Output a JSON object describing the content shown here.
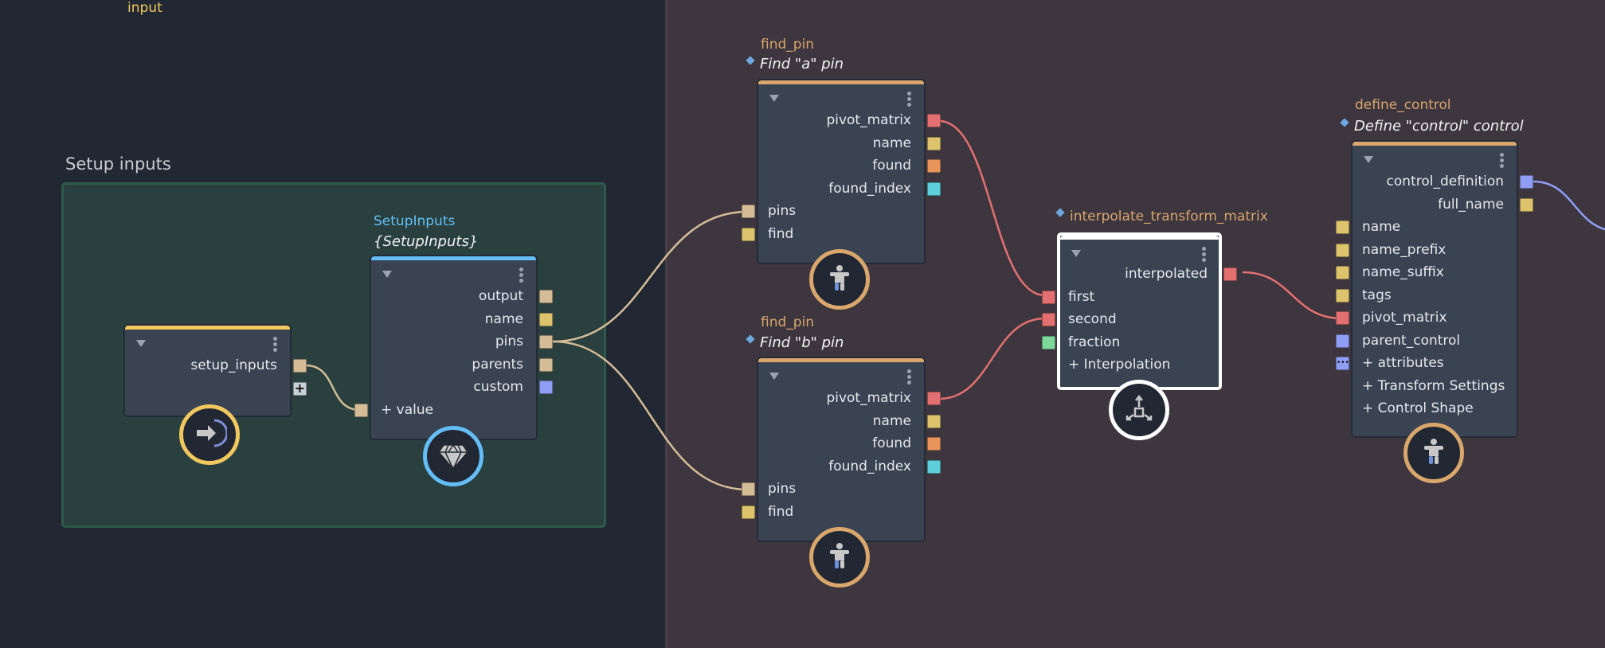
{
  "group": {
    "title": "Setup inputs"
  },
  "port_colors": {
    "struct": "#d4bc97",
    "string": "#dcc36c",
    "matrix": "#e37070",
    "bool": "#e8955c",
    "int": "#5ccfd8",
    "control": "#8f9df5",
    "float": "#7fd99b",
    "add": "#c8d0d8"
  },
  "nodes": {
    "input": {
      "type_label": "input",
      "type_color": "#f0c85e",
      "stripe": "#f0c85e",
      "badge_color": "#f0c85e",
      "badge_icon": "arrow-in-icon",
      "outputs": [
        {
          "label": "setup_inputs",
          "color": "#d4bc97"
        }
      ],
      "add_port": "+",
      "inputs": [],
      "expanders": []
    },
    "setup_inputs": {
      "type_label": "SetupInputs",
      "type_color": "#64bdf6",
      "title": "{SetupInputs}",
      "stripe": "#64bdf6",
      "badge_color": "#64bdf6",
      "badge_icon": "diamond-icon",
      "outputs": [
        {
          "label": "output",
          "color": "#d4bc97"
        },
        {
          "label": "name",
          "color": "#dcc36c"
        },
        {
          "label": "pins",
          "color": "#d4bc97"
        },
        {
          "label": "parents",
          "color": "#d4bc97"
        },
        {
          "label": "custom",
          "color": "#8f9df5"
        }
      ],
      "inputs": [
        {
          "label": "+ value",
          "color": "#d4bc97"
        }
      ],
      "expanders": []
    },
    "find_pin_a": {
      "type_label": "find_pin",
      "type_color": "#d9a66c",
      "title": "Find \"a\" pin",
      "stripe": "#d9a66c",
      "badge_color": "#d9a66c",
      "badge_icon": "person-icon",
      "outputs": [
        {
          "label": "pivot_matrix",
          "color": "#e37070"
        },
        {
          "label": "name",
          "color": "#dcc36c"
        },
        {
          "label": "found",
          "color": "#e8955c"
        },
        {
          "label": "found_index",
          "color": "#5ccfd8"
        }
      ],
      "inputs": [
        {
          "label": "pins",
          "color": "#d4bc97"
        },
        {
          "label": "find",
          "color": "#dcc36c"
        }
      ],
      "expanders": []
    },
    "find_pin_b": {
      "type_label": "find_pin",
      "type_color": "#d9a66c",
      "title": "Find \"b\" pin",
      "stripe": "#d9a66c",
      "badge_color": "#d9a66c",
      "badge_icon": "person-icon",
      "outputs": [
        {
          "label": "pivot_matrix",
          "color": "#e37070"
        },
        {
          "label": "name",
          "color": "#dcc36c"
        },
        {
          "label": "found",
          "color": "#e8955c"
        },
        {
          "label": "found_index",
          "color": "#5ccfd8"
        }
      ],
      "inputs": [
        {
          "label": "pins",
          "color": "#d4bc97"
        },
        {
          "label": "find",
          "color": "#dcc36c"
        }
      ],
      "expanders": []
    },
    "interpolate": {
      "type_label": "interpolate_transform_matrix",
      "type_color": "#d9a66c",
      "title": "",
      "stripe": "#ffffff",
      "badge_color": "#ffffff",
      "badge_icon": "move-arrows-icon",
      "selected": true,
      "outputs": [
        {
          "label": "interpolated",
          "color": "#e37070"
        }
      ],
      "inputs": [
        {
          "label": "first",
          "color": "#e37070"
        },
        {
          "label": "second",
          "color": "#e37070"
        },
        {
          "label": "fraction",
          "color": "#7fd99b"
        }
      ],
      "expanders": [
        {
          "label": "+ Interpolation"
        }
      ]
    },
    "define_control": {
      "type_label": "define_control",
      "type_color": "#d9a66c",
      "title": "Define \"control\" control",
      "stripe": "#d9a66c",
      "badge_color": "#d9a66c",
      "badge_icon": "person-icon",
      "outputs": [
        {
          "label": "control_definition",
          "color": "#8f9df5"
        },
        {
          "label": "full_name",
          "color": "#dcc36c"
        }
      ],
      "inputs": [
        {
          "label": "name",
          "color": "#dcc36c"
        },
        {
          "label": "name_prefix",
          "color": "#dcc36c"
        },
        {
          "label": "name_suffix",
          "color": "#dcc36c"
        },
        {
          "label": "tags",
          "color": "#dcc36c"
        },
        {
          "label": "pivot_matrix",
          "color": "#e37070"
        },
        {
          "label": "parent_control",
          "color": "#8f9df5"
        },
        {
          "label": "+ attributes",
          "color": "#8f9df5",
          "ellipsis": "•••"
        }
      ],
      "expanders": [
        {
          "label": "+ Transform Settings"
        },
        {
          "label": "+ Control Shape"
        }
      ]
    }
  }
}
